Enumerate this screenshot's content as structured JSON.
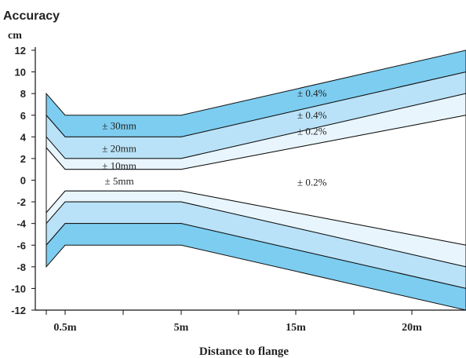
{
  "chart_data": {
    "type": "area",
    "title": "Accuracy",
    "ylabel": "cm",
    "xlabel": "Distance to flange",
    "ylim": [
      -12,
      12
    ],
    "yticks": [
      12,
      10,
      8,
      6,
      4,
      2,
      0,
      -2,
      -4,
      -6,
      -8,
      -10,
      -12
    ],
    "ytick_labels": [
      "12",
      "10",
      "8",
      "6",
      "4",
      "2",
      "0",
      "-2",
      "-4",
      "-6",
      "-8",
      "-10",
      "-12"
    ],
    "xticks": [
      {
        "label": "0.5m",
        "x": 0.5
      },
      {
        "label": "5m",
        "x": 5
      },
      {
        "label": "15m",
        "x": 15
      },
      {
        "label": "20m",
        "x": 20
      }
    ],
    "band_colors": {
      "dark": "#7ccdf0",
      "medium": "#b9e2f8",
      "light": "#e8f5fd",
      "white": "#ffffff"
    },
    "bands": [
      {
        "tone": "dark",
        "top": [
          {
            "x": -0.5,
            "y": 8
          },
          {
            "x": 0.5,
            "y": 6
          },
          {
            "x": 5,
            "y": 6
          },
          {
            "x": 21.5,
            "y": 12
          }
        ],
        "bottom": [
          {
            "x": -0.5,
            "y": 6
          },
          {
            "x": 0.5,
            "y": 4
          },
          {
            "x": 5,
            "y": 4
          },
          {
            "x": 21.5,
            "y": 10
          }
        ]
      },
      {
        "tone": "medium",
        "top": [
          {
            "x": -0.5,
            "y": 6
          },
          {
            "x": 0.5,
            "y": 4
          },
          {
            "x": 5,
            "y": 4
          },
          {
            "x": 21.5,
            "y": 10
          }
        ],
        "bottom": [
          {
            "x": -0.5,
            "y": 4
          },
          {
            "x": 0.5,
            "y": 2
          },
          {
            "x": 5,
            "y": 2
          },
          {
            "x": 21.5,
            "y": 8
          }
        ]
      },
      {
        "tone": "light",
        "top": [
          {
            "x": -0.5,
            "y": 4
          },
          {
            "x": 0.5,
            "y": 2
          },
          {
            "x": 5,
            "y": 2
          },
          {
            "x": 21.5,
            "y": 8
          }
        ],
        "bottom": [
          {
            "x": -0.5,
            "y": 3
          },
          {
            "x": 0.5,
            "y": 1
          },
          {
            "x": 5,
            "y": 1
          },
          {
            "x": 21.5,
            "y": 6
          }
        ]
      },
      {
        "tone": "white",
        "top": [
          {
            "x": -0.5,
            "y": 3
          },
          {
            "x": 0.5,
            "y": 1
          },
          {
            "x": 5,
            "y": 1
          },
          {
            "x": 21.5,
            "y": 6
          }
        ],
        "bottom": [
          {
            "x": -0.5,
            "y": -3
          },
          {
            "x": 0.5,
            "y": -1
          },
          {
            "x": 5,
            "y": -1
          },
          {
            "x": 21.5,
            "y": -6
          }
        ]
      },
      {
        "tone": "light",
        "top": [
          {
            "x": -0.5,
            "y": -3
          },
          {
            "x": 0.5,
            "y": -1
          },
          {
            "x": 5,
            "y": -1
          },
          {
            "x": 21.5,
            "y": -6
          }
        ],
        "bottom": [
          {
            "x": -0.5,
            "y": -4
          },
          {
            "x": 0.5,
            "y": -2
          },
          {
            "x": 5,
            "y": -2
          },
          {
            "x": 21.5,
            "y": -8
          }
        ]
      },
      {
        "tone": "medium",
        "top": [
          {
            "x": -0.5,
            "y": -4
          },
          {
            "x": 0.5,
            "y": -2
          },
          {
            "x": 5,
            "y": -2
          },
          {
            "x": 21.5,
            "y": -8
          }
        ],
        "bottom": [
          {
            "x": -0.5,
            "y": -6
          },
          {
            "x": 0.5,
            "y": -4
          },
          {
            "x": 5,
            "y": -4
          },
          {
            "x": 21.5,
            "y": -10
          }
        ]
      },
      {
        "tone": "dark",
        "top": [
          {
            "x": -0.5,
            "y": -6
          },
          {
            "x": 0.5,
            "y": -4
          },
          {
            "x": 5,
            "y": -4
          },
          {
            "x": 21.5,
            "y": -10
          }
        ],
        "bottom": [
          {
            "x": -0.5,
            "y": -8
          },
          {
            "x": 0.5,
            "y": -6
          },
          {
            "x": 5,
            "y": -6
          },
          {
            "x": 21.5,
            "y": -12
          }
        ]
      }
    ],
    "annotations": [
      {
        "text": "± 30mm",
        "x": 2.6,
        "y": 5
      },
      {
        "text": "± 20mm",
        "x": 2.6,
        "y": 2.9
      },
      {
        "text": "± 10mm",
        "x": 2.6,
        "y": 1.3
      },
      {
        "text": "± 5mm",
        "x": 2.6,
        "y": -0.1
      },
      {
        "text": "± 0.4%",
        "x": 15.7,
        "y": 8
      },
      {
        "text": "± 0.4%",
        "x": 15.7,
        "y": 6
      },
      {
        "text": "± 0.2%",
        "x": 15.7,
        "y": 4.5
      },
      {
        "text": "± 0.2%",
        "x": 15.7,
        "y": -0.2
      }
    ]
  }
}
